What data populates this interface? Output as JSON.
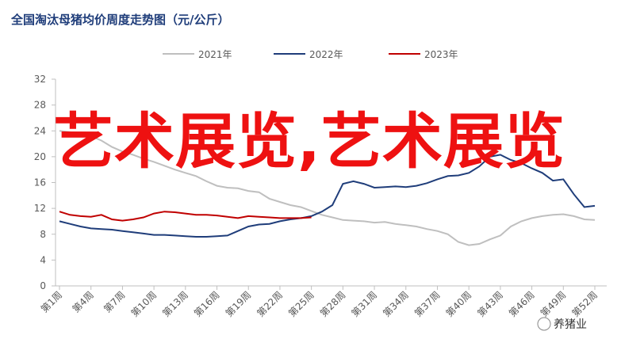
{
  "chart_data": {
    "type": "line",
    "title": "全国淘汰母猪均价周度走势图（元/公斤）",
    "categories": [
      "第1周",
      null,
      null,
      "第4周",
      null,
      null,
      "第7周",
      null,
      null,
      "第10周",
      null,
      null,
      "第13周",
      null,
      null,
      "第16周",
      null,
      null,
      "第19周",
      null,
      null,
      "第22周",
      null,
      null,
      "第25周",
      null,
      null,
      "第28周",
      null,
      null,
      "第31周",
      null,
      null,
      "第34周",
      null,
      null,
      "第37周",
      null,
      null,
      "第40周",
      null,
      null,
      "第43周",
      null,
      null,
      "第46周",
      null,
      null,
      "第49周",
      null,
      null,
      "第52周"
    ],
    "series": [
      {
        "name": "2021年",
        "color": "#bfbfbf",
        "values": [
          24,
          23.8,
          23.5,
          23.2,
          22.5,
          21.5,
          20.8,
          20.3,
          19.7,
          19.2,
          18.6,
          18,
          17.5,
          17,
          16.2,
          15.5,
          15.2,
          15.1,
          14.7,
          14.5,
          13.5,
          13,
          12.5,
          12.2,
          11.6,
          11,
          10.6,
          10.2,
          10.1,
          10,
          9.8,
          9.9,
          9.6,
          9.4,
          9.2,
          8.8,
          8.5,
          8,
          6.8,
          6.3,
          6.5,
          7.2,
          7.8,
          9.2,
          10,
          10.5,
          10.8,
          11,
          11.1,
          10.8,
          10.3,
          10.2
        ]
      },
      {
        "name": "2022年",
        "color": "#1f3d7a",
        "values": [
          10,
          9.6,
          9.2,
          8.9,
          8.8,
          8.7,
          8.5,
          8.3,
          8.1,
          7.9,
          7.9,
          7.8,
          7.7,
          7.6,
          7.6,
          7.7,
          7.8,
          8.5,
          9.2,
          9.5,
          9.6,
          10,
          10.3,
          10.5,
          10.8,
          11.5,
          12.5,
          15.8,
          16.2,
          15.8,
          15.2,
          15.3,
          15.4,
          15.3,
          15.5,
          15.9,
          16.5,
          17,
          17.1,
          17.5,
          18.5,
          20,
          20.3,
          19.5,
          19,
          18.2,
          17.5,
          16.3,
          16.5,
          14.2,
          12.2,
          12.4
        ]
      },
      {
        "name": "2023年",
        "color": "#c00000",
        "values": [
          11.5,
          11,
          10.8,
          10.7,
          11,
          10.3,
          10.1,
          10.3,
          10.6,
          11.2,
          11.5,
          11.4,
          11.2,
          11,
          11,
          10.9,
          10.7,
          10.5,
          10.8,
          10.7,
          10.6,
          10.5,
          10.5,
          10.5,
          10.6,
          null,
          null,
          null,
          null,
          null,
          null,
          null,
          null,
          null,
          null,
          null,
          null,
          null,
          null,
          null,
          null,
          null,
          null,
          null,
          null,
          null,
          null,
          null,
          null,
          null,
          null,
          null
        ]
      }
    ],
    "ylim": [
      0,
      32
    ],
    "yticks": [
      0,
      4,
      8,
      12,
      16,
      20,
      24,
      28,
      32
    ],
    "grid": false,
    "overlay_text": "艺术展览,艺术展览",
    "watermark": "养猪业"
  }
}
